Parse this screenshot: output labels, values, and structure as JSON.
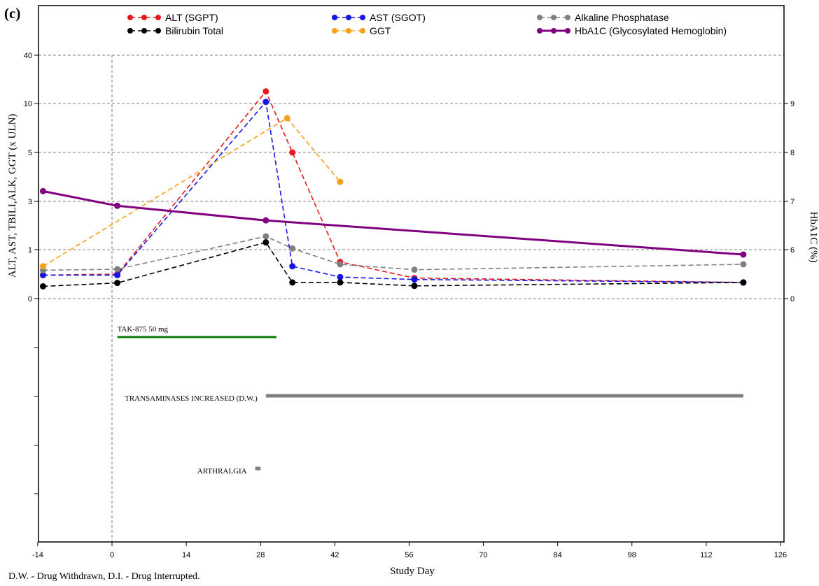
{
  "chart_data": {
    "type": "line",
    "panel_label": "(c)",
    "xlabel": "Study Day",
    "ylabel_left": "ALT, AST, TBILI,ALK, GGT (x ULN)",
    "ylabel_right": "HbA1C (%)",
    "footnote": "D.W. - Drug Withdrawn, D.I. - Drug Interrupted.",
    "x_ticks": [
      "-14",
      "0",
      "14",
      "28",
      "42",
      "56",
      "70",
      "84",
      "98",
      "112",
      "126"
    ],
    "xlim": [
      -14,
      126
    ],
    "y_left_ticks": [
      "0",
      "1",
      "3",
      "5",
      "10",
      "40"
    ],
    "y_right_ticks": [
      "0",
      "6",
      "7",
      "8",
      "9"
    ],
    "reference_line_x": 0,
    "grid": "horizontal dashed",
    "legend_position": "top",
    "series": [
      {
        "name": "ALT (SGPT)",
        "color": "#e8191c",
        "style": "dashed",
        "axis": "left",
        "points": [
          [
            -13,
            0.48
          ],
          [
            1,
            0.5
          ],
          [
            29,
            17.5
          ],
          [
            34,
            5
          ],
          [
            43,
            0.75
          ],
          [
            57,
            0.42
          ],
          [
            119,
            0.33
          ]
        ]
      },
      {
        "name": "AST (SGOT)",
        "color": "#1515e6",
        "style": "dashed",
        "axis": "left",
        "points": [
          [
            -13,
            0.48
          ],
          [
            1,
            0.48
          ],
          [
            29,
            11
          ],
          [
            34,
            0.66
          ],
          [
            43,
            0.44
          ],
          [
            57,
            0.39
          ],
          [
            119,
            0.33
          ]
        ]
      },
      {
        "name": "Alkaline Phosphatase",
        "color": "#808080",
        "style": "dashed",
        "axis": "left",
        "points": [
          [
            -13,
            0.58
          ],
          [
            1,
            0.6
          ],
          [
            29,
            1.55
          ],
          [
            34,
            1.05
          ],
          [
            43,
            0.7
          ],
          [
            57,
            0.59
          ],
          [
            119,
            0.7
          ]
        ]
      },
      {
        "name": "Bilirubin Total",
        "color": "#000000",
        "style": "dashed",
        "axis": "left",
        "points": [
          [
            -13,
            0.25
          ],
          [
            1,
            0.32
          ],
          [
            29,
            1.3
          ],
          [
            34,
            0.33
          ],
          [
            43,
            0.33
          ],
          [
            57,
            0.26
          ],
          [
            119,
            0.33
          ]
        ]
      },
      {
        "name": "GGT",
        "color": "#f5a01a",
        "style": "dashed",
        "axis": "left",
        "points": [
          [
            -13,
            0.66
          ],
          [
            33,
            8.5
          ],
          [
            43,
            3.8
          ]
        ]
      },
      {
        "name": "HbA1C (Glycosylated Hemoglobin)",
        "color": "#800080",
        "style": "solid",
        "axis": "right",
        "points": [
          [
            -13,
            7.2
          ],
          [
            1,
            6.9
          ],
          [
            29,
            6.6
          ],
          [
            119,
            5.9
          ]
        ]
      }
    ],
    "events": [
      {
        "label": "TAK-875 50 mg",
        "start": 1,
        "end": 31,
        "color": "#0a7a0a"
      },
      {
        "label": "TRANSAMINASES INCREASED (D.W.)",
        "start": 29,
        "end": 119,
        "color": "#808080"
      },
      {
        "label": "ARTHRALGIA",
        "start": 27,
        "end": 28,
        "color": "#808080"
      }
    ]
  }
}
